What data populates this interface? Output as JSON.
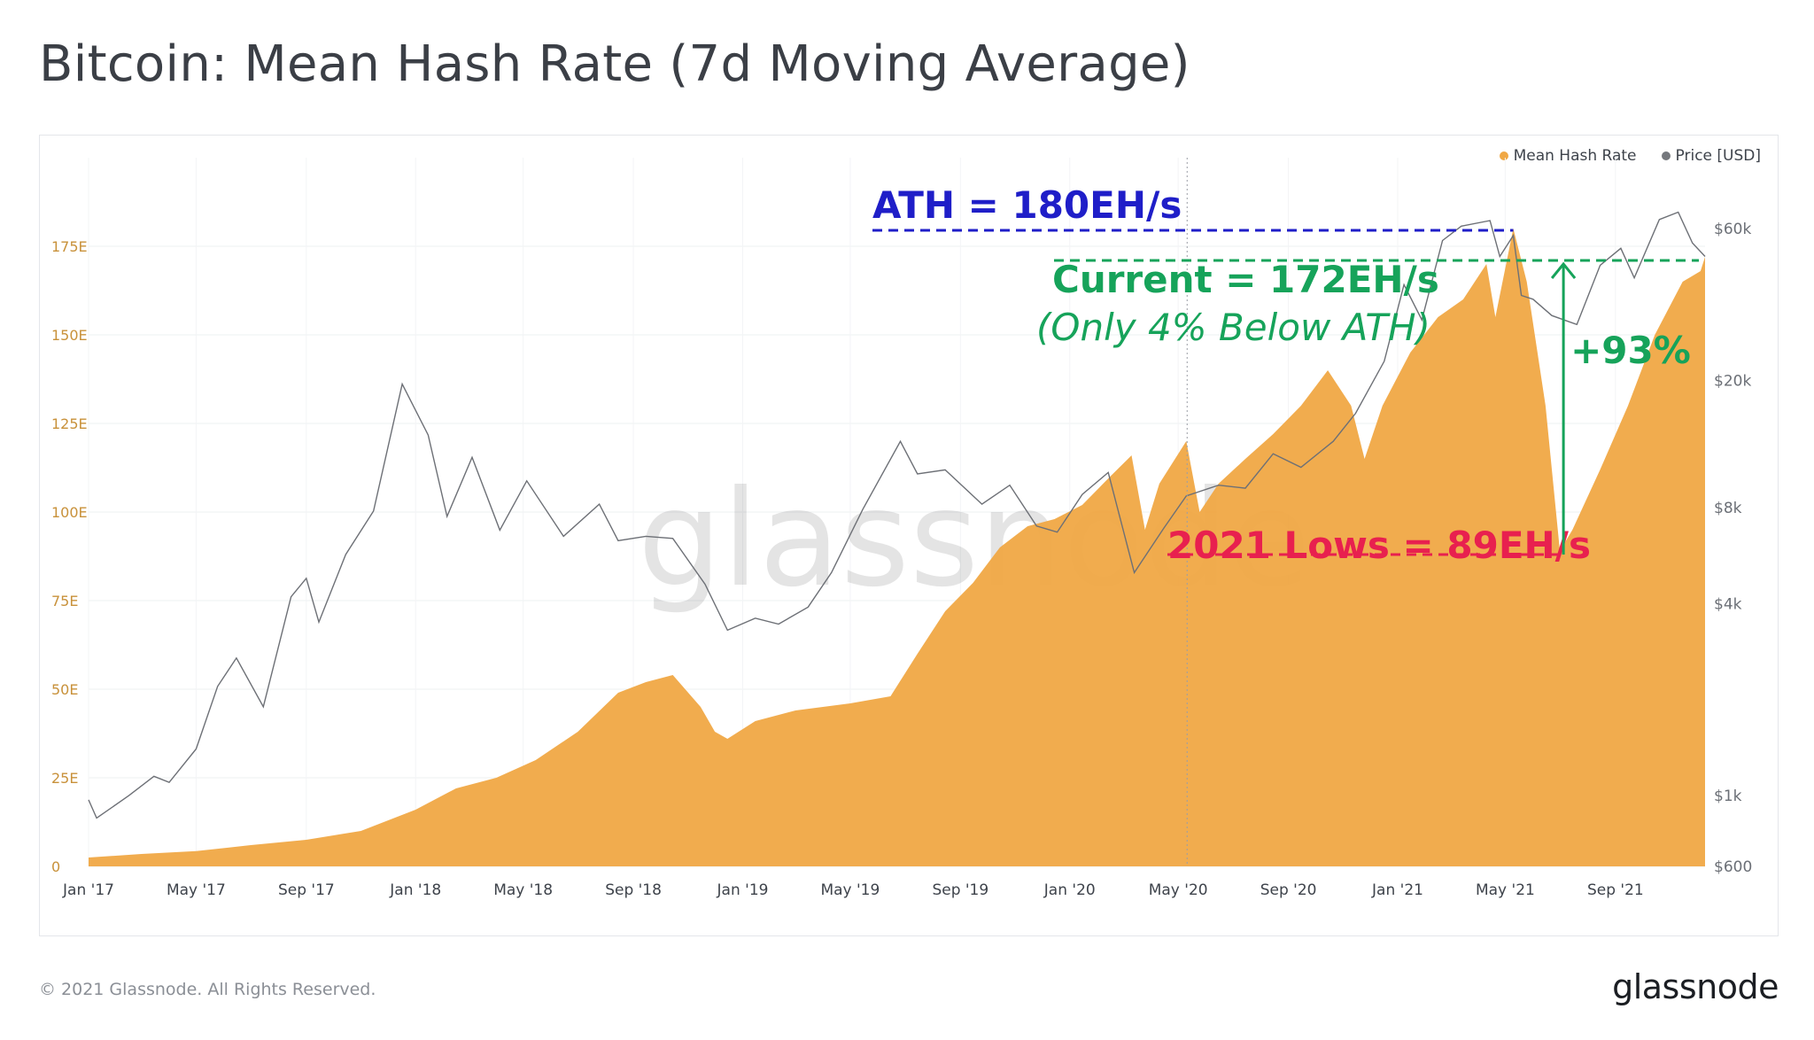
{
  "title": "Bitcoin: Mean Hash Rate (7d Moving Average)",
  "footer": {
    "copyright": "© 2021 Glassnode. All Rights Reserved.",
    "logo": "glassnode"
  },
  "watermark": "glassnode",
  "legend": [
    {
      "label": "Mean Hash Rate",
      "color": "#f0a845"
    },
    {
      "label": "Price [USD]",
      "color": "#75787d"
    }
  ],
  "chart_data": {
    "type": "area",
    "x_start": "2017-01-01",
    "x_end": "2021-12-10",
    "x_tick_labels": [
      "Jan '17",
      "May '17",
      "Sep '17",
      "Jan '18",
      "May '18",
      "Sep '18",
      "Jan '19",
      "May '19",
      "Sep '19",
      "Jan '20",
      "May '20",
      "Sep '20",
      "Jan '21",
      "May '21",
      "Sep '21"
    ],
    "y_left_ticks": [
      "0",
      "25E",
      "50E",
      "75E",
      "100E",
      "125E",
      "150E",
      "175E"
    ],
    "y_left_range": [
      0,
      200
    ],
    "y_right_scale": "log",
    "y_right_ticks": [
      "$600",
      "$1k",
      "$4k",
      "$8k",
      "$20k",
      "$60k"
    ],
    "y_right_range": [
      600,
      100000
    ],
    "grid": true,
    "legend_position": "top-right",
    "series": [
      {
        "name": "Mean Hash Rate",
        "color": "#f0a845",
        "axis": "left",
        "points": [
          [
            "2017-01-01",
            2.5
          ],
          [
            "2017-03-01",
            3.5
          ],
          [
            "2017-05-01",
            4.3
          ],
          [
            "2017-07-01",
            6
          ],
          [
            "2017-09-01",
            7.5
          ],
          [
            "2017-11-01",
            10
          ],
          [
            "2018-01-01",
            16
          ],
          [
            "2018-02-15",
            22
          ],
          [
            "2018-04-01",
            25
          ],
          [
            "2018-05-15",
            30
          ],
          [
            "2018-07-01",
            38
          ],
          [
            "2018-08-15",
            49
          ],
          [
            "2018-09-15",
            52
          ],
          [
            "2018-10-15",
            54
          ],
          [
            "2018-11-15",
            45
          ],
          [
            "2018-12-01",
            38
          ],
          [
            "2018-12-15",
            36
          ],
          [
            "2019-01-15",
            41
          ],
          [
            "2019-03-01",
            44
          ],
          [
            "2019-05-01",
            46
          ],
          [
            "2019-06-15",
            48
          ],
          [
            "2019-07-15",
            60
          ],
          [
            "2019-08-15",
            72
          ],
          [
            "2019-09-15",
            80
          ],
          [
            "2019-10-15",
            90
          ],
          [
            "2019-11-15",
            96
          ],
          [
            "2019-12-15",
            98
          ],
          [
            "2020-01-15",
            102
          ],
          [
            "2020-02-15",
            110
          ],
          [
            "2020-03-10",
            116
          ],
          [
            "2020-03-25",
            95
          ],
          [
            "2020-04-10",
            108
          ],
          [
            "2020-05-10",
            120
          ],
          [
            "2020-05-25",
            100
          ],
          [
            "2020-06-15",
            108
          ],
          [
            "2020-07-15",
            115
          ],
          [
            "2020-08-15",
            122
          ],
          [
            "2020-09-15",
            130
          ],
          [
            "2020-10-15",
            140
          ],
          [
            "2020-11-10",
            130
          ],
          [
            "2020-11-25",
            115
          ],
          [
            "2020-12-15",
            130
          ],
          [
            "2021-01-15",
            145
          ],
          [
            "2021-02-15",
            155
          ],
          [
            "2021-03-15",
            160
          ],
          [
            "2021-04-10",
            170
          ],
          [
            "2021-04-20",
            155
          ],
          [
            "2021-05-10",
            180
          ],
          [
            "2021-05-25",
            165
          ],
          [
            "2021-06-15",
            130
          ],
          [
            "2021-07-01",
            89
          ],
          [
            "2021-07-15",
            95
          ],
          [
            "2021-08-15",
            112
          ],
          [
            "2021-09-15",
            130
          ],
          [
            "2021-10-15",
            150
          ],
          [
            "2021-11-15",
            165
          ],
          [
            "2021-12-05",
            168
          ],
          [
            "2021-12-10",
            172
          ]
        ]
      },
      {
        "name": "Price [USD]",
        "color": "#75787d",
        "axis": "right",
        "points": [
          [
            "2017-01-01",
            970
          ],
          [
            "2017-01-10",
            850
          ],
          [
            "2017-02-15",
            1000
          ],
          [
            "2017-03-15",
            1150
          ],
          [
            "2017-04-01",
            1100
          ],
          [
            "2017-05-01",
            1400
          ],
          [
            "2017-05-25",
            2200
          ],
          [
            "2017-06-15",
            2700
          ],
          [
            "2017-07-15",
            1900
          ],
          [
            "2017-08-15",
            4200
          ],
          [
            "2017-09-01",
            4800
          ],
          [
            "2017-09-15",
            3500
          ],
          [
            "2017-10-15",
            5700
          ],
          [
            "2017-11-15",
            7800
          ],
          [
            "2017-12-17",
            19500
          ],
          [
            "2018-01-15",
            13500
          ],
          [
            "2018-02-05",
            7500
          ],
          [
            "2018-03-05",
            11500
          ],
          [
            "2018-04-05",
            6800
          ],
          [
            "2018-05-05",
            9700
          ],
          [
            "2018-06-15",
            6500
          ],
          [
            "2018-07-25",
            8200
          ],
          [
            "2018-08-15",
            6300
          ],
          [
            "2018-09-15",
            6500
          ],
          [
            "2018-10-15",
            6400
          ],
          [
            "2018-11-20",
            4600
          ],
          [
            "2018-12-15",
            3300
          ],
          [
            "2019-01-15",
            3600
          ],
          [
            "2019-02-10",
            3450
          ],
          [
            "2019-03-15",
            3900
          ],
          [
            "2019-04-10",
            5000
          ],
          [
            "2019-05-15",
            7900
          ],
          [
            "2019-06-26",
            12900
          ],
          [
            "2019-07-15",
            10200
          ],
          [
            "2019-08-15",
            10500
          ],
          [
            "2019-09-25",
            8200
          ],
          [
            "2019-10-26",
            9400
          ],
          [
            "2019-11-25",
            7000
          ],
          [
            "2019-12-18",
            6700
          ],
          [
            "2020-01-15",
            8800
          ],
          [
            "2020-02-13",
            10300
          ],
          [
            "2020-03-13",
            5000
          ],
          [
            "2020-04-15",
            6900
          ],
          [
            "2020-05-10",
            8700
          ],
          [
            "2020-06-15",
            9400
          ],
          [
            "2020-07-15",
            9200
          ],
          [
            "2020-08-15",
            11800
          ],
          [
            "2020-09-15",
            10700
          ],
          [
            "2020-10-21",
            12900
          ],
          [
            "2020-11-15",
            15800
          ],
          [
            "2020-12-17",
            23000
          ],
          [
            "2021-01-08",
            40000
          ],
          [
            "2021-01-28",
            31000
          ],
          [
            "2021-02-20",
            55000
          ],
          [
            "2021-03-13",
            61000
          ],
          [
            "2021-04-14",
            63500
          ],
          [
            "2021-04-25",
            49000
          ],
          [
            "2021-05-10",
            57000
          ],
          [
            "2021-05-19",
            37000
          ],
          [
            "2021-06-01",
            36000
          ],
          [
            "2021-06-22",
            32000
          ],
          [
            "2021-07-20",
            30000
          ],
          [
            "2021-08-15",
            46000
          ],
          [
            "2021-09-07",
            52000
          ],
          [
            "2021-09-22",
            42000
          ],
          [
            "2021-10-20",
            64000
          ],
          [
            "2021-11-10",
            67500
          ],
          [
            "2021-11-26",
            54000
          ],
          [
            "2021-12-10",
            49000
          ]
        ]
      }
    ],
    "annotations": [
      {
        "text": "ATH = 180EH/s",
        "color": "#1f1ec8",
        "value": 180
      },
      {
        "text": "Current = 172EH/s",
        "subtext": "(Only 4% Below ATH)",
        "color": "#16a35a",
        "value": 172
      },
      {
        "text": "2021 Lows = 89EH/s",
        "color": "#e8204f",
        "value": 89
      },
      {
        "text": "+93%",
        "color": "#16a35a"
      }
    ],
    "vertical_marker_date": "2020-05-11"
  }
}
